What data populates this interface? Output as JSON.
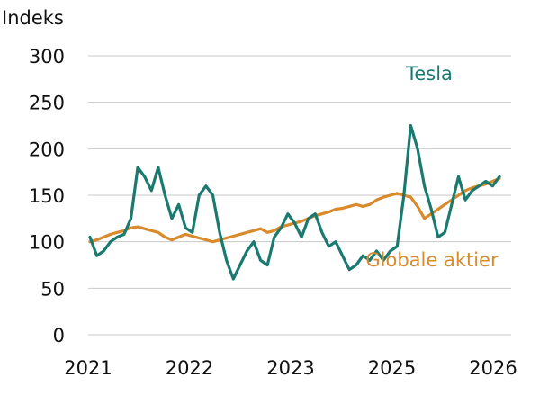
{
  "chart_data": {
    "type": "line",
    "title": "",
    "ylabel": "Indeks",
    "xlabel": "",
    "ylim": [
      0,
      300
    ],
    "y_ticks": [
      0,
      50,
      100,
      150,
      200,
      250,
      300
    ],
    "x_tick_labels": [
      "2021",
      "2022",
      "2023",
      "2025",
      "2026"
    ],
    "x_range": [
      "2021-01",
      "2026-01"
    ],
    "grid": "horizontal",
    "series": [
      {
        "name": "Tesla",
        "color": "#1a7a70",
        "x": [
          "2021-01",
          "2021-02",
          "2021-03",
          "2021-04",
          "2021-05",
          "2021-06",
          "2021-07",
          "2021-08",
          "2021-09",
          "2021-10",
          "2021-11",
          "2021-12",
          "2022-01",
          "2022-02",
          "2022-03",
          "2022-04",
          "2022-05",
          "2022-06",
          "2022-07",
          "2022-08",
          "2022-09",
          "2022-10",
          "2022-11",
          "2022-12",
          "2023-01",
          "2023-02",
          "2023-03",
          "2023-04",
          "2023-05",
          "2023-06",
          "2023-07",
          "2023-08",
          "2023-09",
          "2023-10",
          "2023-11",
          "2023-12",
          "2024-01",
          "2024-02",
          "2024-03",
          "2024-04",
          "2024-05",
          "2024-06",
          "2024-07",
          "2024-08",
          "2024-09",
          "2024-10",
          "2024-11",
          "2024-12",
          "2025-01",
          "2025-02",
          "2025-03",
          "2025-04",
          "2025-05",
          "2025-06",
          "2025-07",
          "2025-08",
          "2025-09",
          "2025-10",
          "2025-11",
          "2025-12",
          "2026-01"
        ],
        "values": [
          105,
          85,
          90,
          100,
          105,
          108,
          125,
          180,
          170,
          155,
          180,
          150,
          125,
          140,
          115,
          110,
          150,
          160,
          150,
          110,
          80,
          60,
          75,
          90,
          100,
          80,
          75,
          105,
          115,
          130,
          120,
          105,
          125,
          130,
          110,
          95,
          100,
          85,
          70,
          75,
          85,
          80,
          90,
          80,
          90,
          95,
          150,
          225,
          200,
          160,
          135,
          105,
          110,
          140,
          170,
          145,
          155,
          160,
          165,
          160,
          170
        ]
      },
      {
        "name": "Globale aktier",
        "color": "#d98a2b",
        "x": [
          "2021-01",
          "2021-02",
          "2021-03",
          "2021-04",
          "2021-05",
          "2021-06",
          "2021-07",
          "2021-08",
          "2021-09",
          "2021-10",
          "2021-11",
          "2021-12",
          "2022-01",
          "2022-02",
          "2022-03",
          "2022-04",
          "2022-05",
          "2022-06",
          "2022-07",
          "2022-08",
          "2022-09",
          "2022-10",
          "2022-11",
          "2022-12",
          "2023-01",
          "2023-02",
          "2023-03",
          "2023-04",
          "2023-05",
          "2023-06",
          "2023-07",
          "2023-08",
          "2023-09",
          "2023-10",
          "2023-11",
          "2023-12",
          "2024-01",
          "2024-02",
          "2024-03",
          "2024-04",
          "2024-05",
          "2024-06",
          "2024-07",
          "2024-08",
          "2024-09",
          "2024-10",
          "2024-11",
          "2024-12",
          "2025-01",
          "2025-02",
          "2025-03",
          "2025-04",
          "2025-05",
          "2025-06",
          "2025-07",
          "2025-08",
          "2025-09",
          "2025-10",
          "2025-11",
          "2025-12",
          "2026-01"
        ],
        "values": [
          100,
          102,
          105,
          108,
          110,
          112,
          115,
          116,
          114,
          112,
          110,
          105,
          102,
          105,
          108,
          106,
          104,
          102,
          100,
          102,
          104,
          106,
          108,
          110,
          112,
          114,
          110,
          112,
          116,
          118,
          120,
          122,
          125,
          128,
          130,
          132,
          135,
          136,
          138,
          140,
          138,
          140,
          145,
          148,
          150,
          152,
          150,
          148,
          138,
          125,
          130,
          135,
          140,
          145,
          150,
          155,
          158,
          160,
          162,
          165,
          168
        ]
      }
    ]
  }
}
